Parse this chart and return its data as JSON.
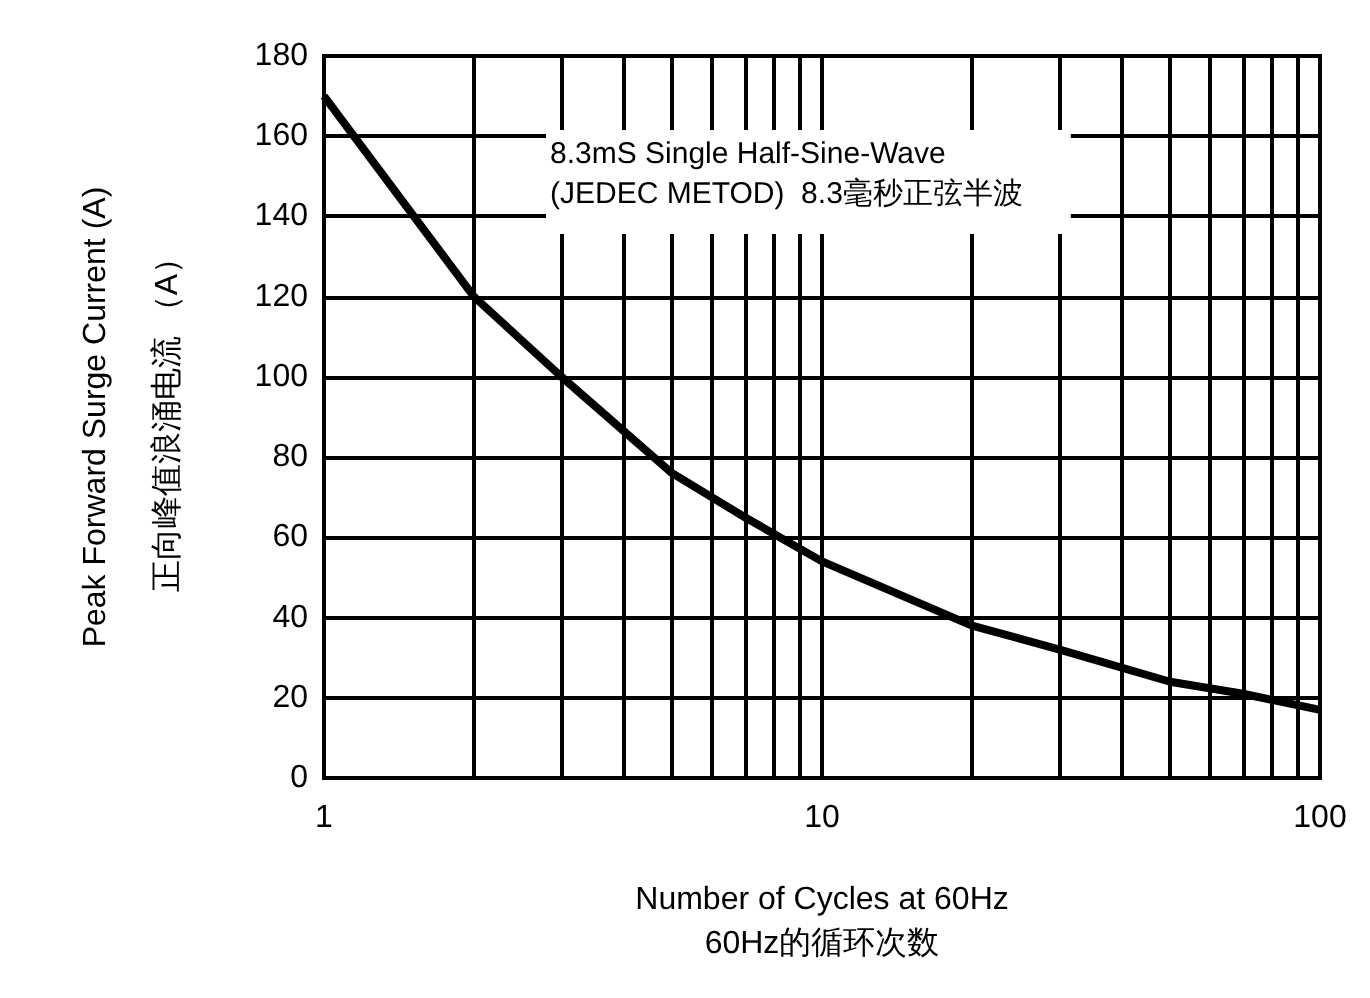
{
  "chart_data": {
    "type": "line",
    "xlabel": "Number of Cycles at 60Hz\n60Hz的循环次数",
    "ylabel": "Peak Forward Surge Current (A)\n正向峰值浪涌电流 （A）",
    "annotations": [
      "8.3mS Single Half-Sine-Wave\n(JEDEC METOD)  8.3毫秒正弦半波"
    ],
    "x": [
      1,
      2,
      3,
      5,
      7,
      10,
      20,
      30,
      50,
      70,
      100
    ],
    "series": [
      {
        "color": "#000000",
        "values": [
          170,
          120,
          100,
          76,
          65,
          54,
          38,
          32,
          24,
          21,
          17
        ]
      }
    ],
    "log": "x",
    "xlim": [
      1,
      100
    ],
    "ylim": [
      0,
      180
    ],
    "xticks": [
      1,
      {
        "value": 2,
        "label": null
      },
      {
        "value": 3,
        "label": null
      },
      {
        "value": 4,
        "label": null
      },
      {
        "value": 5,
        "label": null
      },
      {
        "value": 6,
        "label": null
      },
      {
        "value": 7,
        "label": null
      },
      {
        "value": 8,
        "label": null
      },
      {
        "value": 9,
        "label": null
      },
      10,
      {
        "value": 20,
        "label": null
      },
      {
        "value": 30,
        "label": null
      },
      {
        "value": 40,
        "label": null
      },
      {
        "value": 50,
        "label": null
      },
      {
        "value": 60,
        "label": null
      },
      {
        "value": 70,
        "label": null
      },
      {
        "value": 80,
        "label": null
      },
      {
        "value": 90,
        "label": null
      },
      100
    ],
    "yticks": [
      0,
      20,
      40,
      60,
      80,
      100,
      120,
      140,
      160,
      180
    ],
    "grid": true,
    "marker": "none",
    "line_style": "solid"
  }
}
